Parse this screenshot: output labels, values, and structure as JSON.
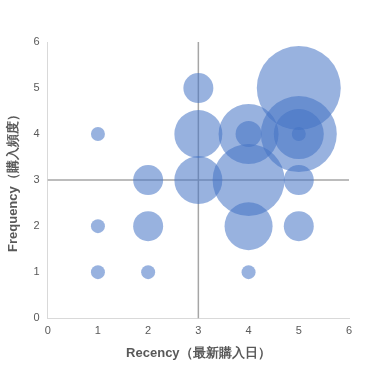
{
  "chart_data": {
    "type": "bubble",
    "x_label": "Recency（最新購入日）",
    "y_label": "Frequency（購入頻度）",
    "x": [
      1,
      1,
      1,
      2,
      2,
      2,
      3,
      3,
      3,
      4,
      4,
      4,
      4,
      4,
      5,
      5,
      5,
      5,
      5,
      5
    ],
    "values": [
      4,
      2,
      1,
      3,
      2,
      1,
      5,
      4,
      3,
      4,
      4,
      3,
      2,
      1,
      5,
      4,
      4,
      4,
      3,
      2
    ],
    "sizes": [
      7,
      7,
      7,
      15,
      15,
      7,
      15,
      24,
      24,
      30,
      13,
      36,
      24,
      7,
      42,
      38,
      25,
      7,
      15,
      15
    ],
    "color": "#4472c4",
    "xlim": [
      0,
      6
    ],
    "xticks": [
      0,
      1,
      2,
      3,
      4,
      5,
      6
    ],
    "ylim": [
      0,
      6
    ],
    "yticks": [
      0,
      1,
      2,
      3,
      4,
      5,
      6
    ],
    "reference_x": 3,
    "reference_y": 3,
    "grid": false
  }
}
